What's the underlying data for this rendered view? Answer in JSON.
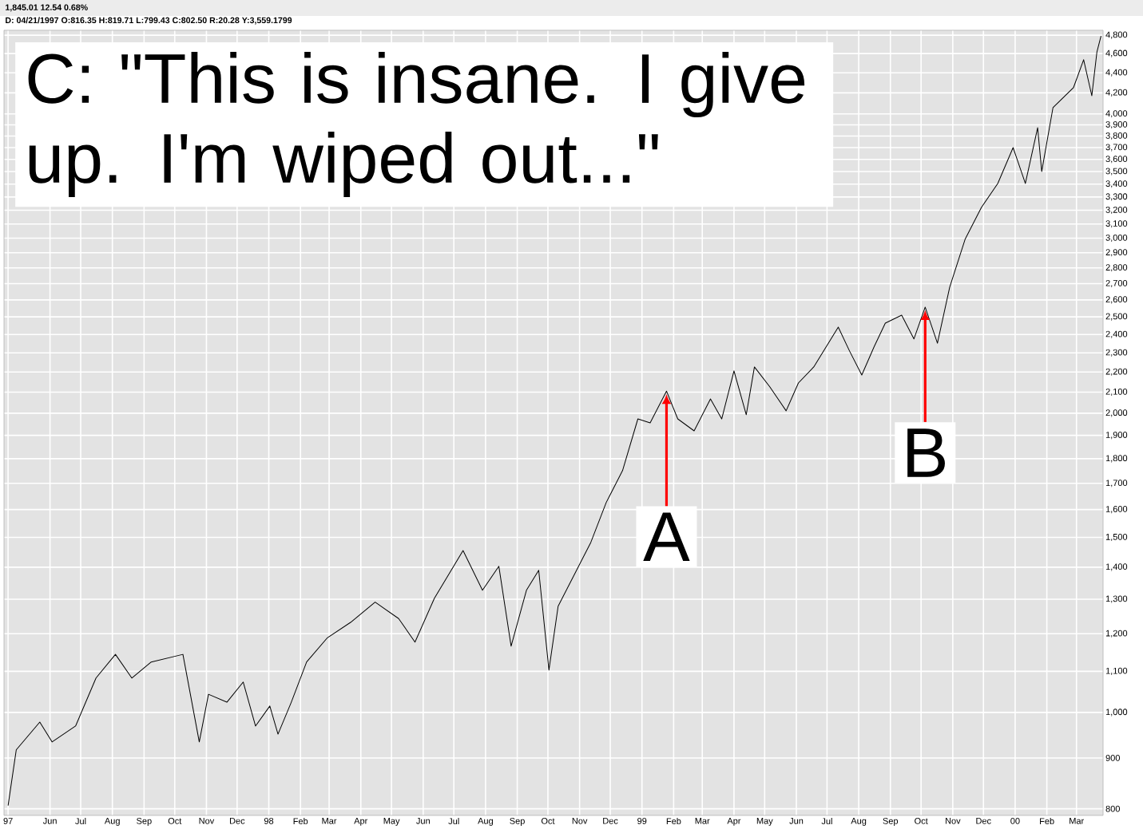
{
  "chart_data": {
    "type": "line",
    "color": "#000000",
    "log": "y",
    "grid": true,
    "xlim": [
      "1997-04-17",
      "2000-03-27"
    ],
    "ylim": [
      788,
      4855
    ],
    "xticks": [
      {
        "value": "1997-04-21",
        "label": "97"
      },
      {
        "value": "1997-06-01",
        "label": "Jun"
      },
      {
        "value": "1997-07-01",
        "label": "Jul"
      },
      {
        "value": "1997-08-01",
        "label": "Aug"
      },
      {
        "value": "1997-09-01",
        "label": "Sep"
      },
      {
        "value": "1997-10-01",
        "label": "Oct"
      },
      {
        "value": "1997-11-01",
        "label": "Nov"
      },
      {
        "value": "1997-12-01",
        "label": "Dec"
      },
      {
        "value": "1998-01-01",
        "label": "98"
      },
      {
        "value": "1998-02-01",
        "label": "Feb"
      },
      {
        "value": "1998-03-01",
        "label": "Mar"
      },
      {
        "value": "1998-04-01",
        "label": "Apr"
      },
      {
        "value": "1998-05-01",
        "label": "May"
      },
      {
        "value": "1998-06-01",
        "label": "Jun"
      },
      {
        "value": "1998-07-01",
        "label": "Jul"
      },
      {
        "value": "1998-08-01",
        "label": "Aug"
      },
      {
        "value": "1998-09-01",
        "label": "Sep"
      },
      {
        "value": "1998-10-01",
        "label": "Oct"
      },
      {
        "value": "1998-11-01",
        "label": "Nov"
      },
      {
        "value": "1998-12-01",
        "label": "Dec"
      },
      {
        "value": "1999-01-01",
        "label": "99"
      },
      {
        "value": "1999-02-01",
        "label": "Feb"
      },
      {
        "value": "1999-03-01",
        "label": "Mar"
      },
      {
        "value": "1999-04-01",
        "label": "Apr"
      },
      {
        "value": "1999-05-01",
        "label": "May"
      },
      {
        "value": "1999-06-01",
        "label": "Jun"
      },
      {
        "value": "1999-07-01",
        "label": "Jul"
      },
      {
        "value": "1999-08-01",
        "label": "Aug"
      },
      {
        "value": "1999-09-01",
        "label": "Sep"
      },
      {
        "value": "1999-10-01",
        "label": "Oct"
      },
      {
        "value": "1999-11-01",
        "label": "Nov"
      },
      {
        "value": "1999-12-01",
        "label": "Dec"
      },
      {
        "value": "2000-01-01",
        "label": "00"
      },
      {
        "value": "2000-02-01",
        "label": "Feb"
      },
      {
        "value": "2000-03-01",
        "label": "Mar"
      }
    ],
    "yticks": [
      800,
      900,
      {
        "value": 1000,
        "label": "1,000"
      },
      {
        "value": 1100,
        "label": "1,100"
      },
      {
        "value": 1200,
        "label": "1,200"
      },
      {
        "value": 1300,
        "label": "1,300"
      },
      {
        "value": 1400,
        "label": "1,400"
      },
      {
        "value": 1500,
        "label": "1,500"
      },
      {
        "value": 1600,
        "label": "1,600"
      },
      {
        "value": 1700,
        "label": "1,700"
      },
      {
        "value": 1800,
        "label": "1,800"
      },
      {
        "value": 1900,
        "label": "1,900"
      },
      {
        "value": 2000,
        "label": "2,000"
      },
      {
        "value": 2100,
        "label": "2,100"
      },
      {
        "value": 2200,
        "label": "2,200"
      },
      {
        "value": 2300,
        "label": "2,300"
      },
      {
        "value": 2400,
        "label": "2,400"
      },
      {
        "value": 2500,
        "label": "2,500"
      },
      {
        "value": 2600,
        "label": "2,600"
      },
      {
        "value": 2700,
        "label": "2,700"
      },
      {
        "value": 2800,
        "label": "2,800"
      },
      {
        "value": 2900,
        "label": "2,900"
      },
      {
        "value": 3000,
        "label": "3,000"
      },
      {
        "value": 3100,
        "label": "3,100"
      },
      {
        "value": 3200,
        "label": "3,200"
      },
      {
        "value": 3300,
        "label": "3,300"
      },
      {
        "value": 3400,
        "label": "3,400"
      },
      {
        "value": 3500,
        "label": "3,500"
      },
      {
        "value": 3600,
        "label": "3,600"
      },
      {
        "value": 3700,
        "label": "3,700"
      },
      {
        "value": 3800,
        "label": "3,800"
      },
      {
        "value": 3900,
        "label": "3,900"
      },
      {
        "value": 4000,
        "label": "4,000"
      },
      {
        "value": 4200,
        "label": "4,200"
      },
      {
        "value": 4400,
        "label": "4,400"
      },
      {
        "value": 4600,
        "label": "4,600"
      },
      {
        "value": 4800,
        "label": "4,800"
      }
    ],
    "x": [
      "1997-04-21",
      "1997-04-29",
      "1997-05-22",
      "1997-06-03",
      "1997-06-26",
      "1997-07-16",
      "1997-08-04",
      "1997-08-20",
      "1997-09-08",
      "1997-10-09",
      "1997-10-25",
      "1997-11-03",
      "1997-11-21",
      "1997-12-07",
      "1997-12-19",
      "1998-01-02",
      "1998-01-10",
      "1998-01-23",
      "1998-02-07",
      "1998-02-27",
      "1998-03-22",
      "1998-04-15",
      "1998-05-08",
      "1998-05-24",
      "1998-06-12",
      "1998-07-10",
      "1998-07-29",
      "1998-08-14",
      "1998-08-26",
      "1998-09-10",
      "1998-09-22",
      "1998-10-02",
      "1998-10-11",
      "1998-10-27",
      "1998-11-12",
      "1998-11-27",
      "1998-12-13",
      "1998-12-28",
      "1999-01-09",
      "1999-01-25",
      "1999-02-05",
      "1999-02-21",
      "1999-03-09",
      "1999-03-20",
      "1999-04-01",
      "1999-04-13",
      "1999-04-21",
      "1999-05-06",
      "1999-05-22",
      "1999-06-03",
      "1999-06-18",
      "1999-07-12",
      "1999-07-23",
      "1999-08-04",
      "1999-08-16",
      "1999-08-27",
      "1999-09-12",
      "1999-09-24",
      "1999-10-05",
      "1999-10-17",
      "1999-10-29",
      "1999-11-13",
      "1999-11-29",
      "1999-12-15",
      "1999-12-30",
      "2000-01-11",
      "2000-01-23",
      "2000-01-27",
      "2000-02-07",
      "2000-02-27",
      "2000-03-08",
      "2000-03-16",
      "2000-03-21",
      "2000-03-25"
    ],
    "values": [
      806,
      917,
      978,
      934,
      969,
      1083,
      1144,
      1083,
      1124,
      1144,
      934,
      1043,
      1024,
      1073,
      969,
      1015,
      951,
      1024,
      1124,
      1188,
      1232,
      1291,
      1243,
      1177,
      1303,
      1455,
      1327,
      1403,
      1166,
      1327,
      1390,
      1103,
      1279,
      1377,
      1483,
      1626,
      1751,
      1974,
      1956,
      2105,
      1974,
      1920,
      2067,
      1974,
      2206,
      1993,
      2226,
      2126,
      2011,
      2145,
      2226,
      2441,
      2310,
      2185,
      2332,
      2464,
      2510,
      2375,
      2557,
      2352,
      2678,
      2991,
      3221,
      3405,
      3700,
      3405,
      3875,
      3501,
      4058,
      4250,
      4535,
      4172,
      4618,
      4792
    ],
    "annotations": [
      "1,845.01  12.54  0.68%",
      "D: 04/21/1997 O:816.35 H:819.71 L:799.43 C:802.50 R:20.28 Y:3,559.1799",
      "C: \"This is insane. I give up. I'm wiped out...\"",
      {
        "text": "A",
        "x": "1999-01-25",
        "y": 2105
      },
      {
        "text": "B",
        "x": "1999-10-05",
        "y": 2557
      }
    ]
  }
}
